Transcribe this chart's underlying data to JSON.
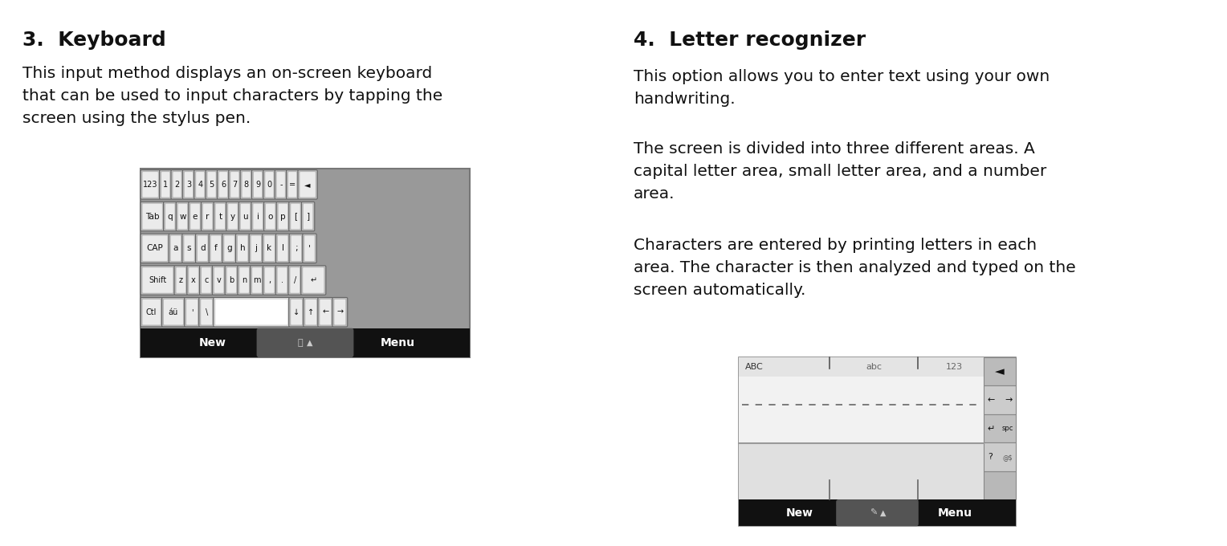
{
  "bg_color": "#ffffff",
  "left_title": "3.  Keyboard",
  "right_title": "4.  Letter recognizer",
  "left_body": "This input method displays an on-screen keyboard\nthat can be used to input characters by tapping the\nscreen using the stylus pen.",
  "right_body1": "This option allows you to enter text using your own\nhandwriting.",
  "right_body2": "The screen is divided into three different areas. A\ncapital letter area, small letter area, and a number\narea.",
  "right_body3": "Characters are entered by printing letters in each\narea. The character is then analyzed and typed on the\nscreen automatically.",
  "title_fontsize": 18,
  "body_fontsize": 14.5,
  "kbd_rows": [
    [
      "123",
      "1",
      "2",
      "3",
      "4",
      "5",
      "6",
      "7",
      "8",
      "9",
      "0",
      "-",
      "=",
      "◄"
    ],
    [
      "Tab",
      "q",
      "w",
      "e",
      "r",
      "t",
      "y",
      "u",
      "i",
      "o",
      "p",
      "[",
      "]"
    ],
    [
      "CAP",
      "a",
      "s",
      "d",
      "f",
      "g",
      "h",
      "j",
      "k",
      "l",
      ";",
      "'"
    ],
    [
      "Shift",
      "z",
      "x",
      "c",
      "v",
      "b",
      "n",
      "m",
      ",",
      ".",
      "/",
      "↵"
    ],
    [
      "Ctl",
      "áü",
      "'",
      "\\",
      "",
      "↓",
      "↑",
      "←",
      "→"
    ]
  ],
  "lr_labels": [
    "ABC",
    "abc",
    "123"
  ]
}
